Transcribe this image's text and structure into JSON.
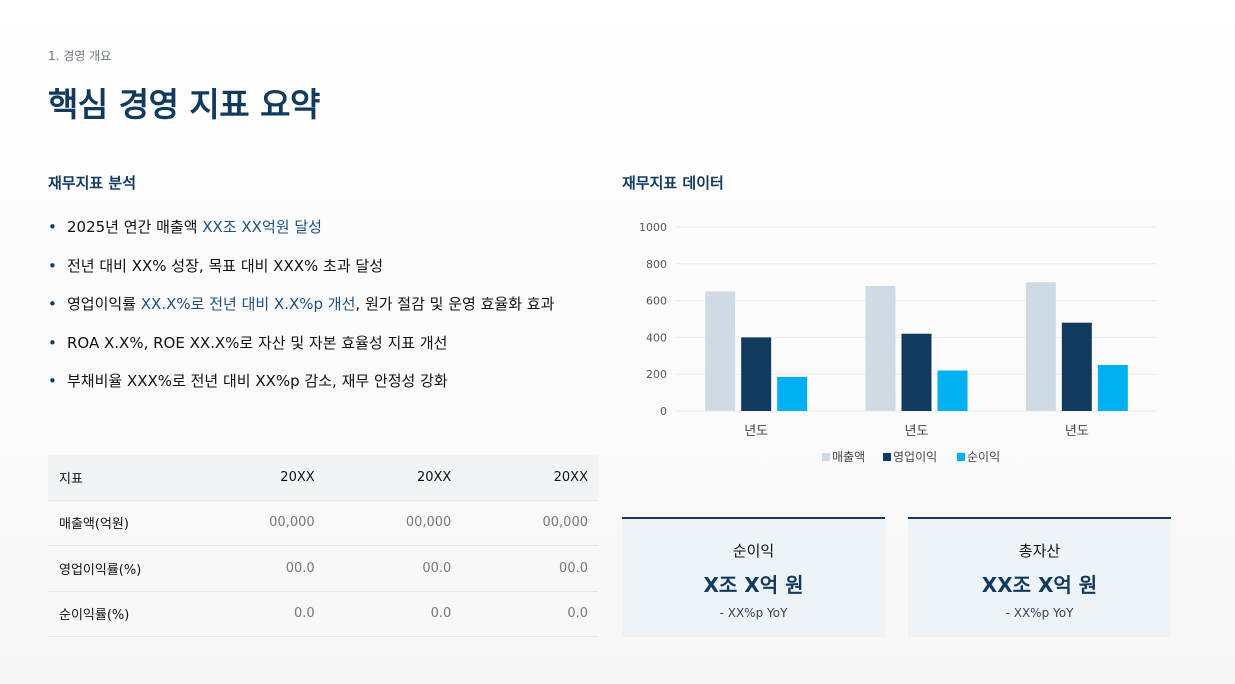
{
  "header": {
    "section": "1. 경영 개요",
    "title": "핵심 경영 지표 요약"
  },
  "left": {
    "title": "재무지표 분석",
    "bullets": [
      {
        "parts": [
          {
            "t": "2025년 연간 매출액 ",
            "h": false
          },
          {
            "t": "XX조 XX억원 달성",
            "h": true
          }
        ]
      },
      {
        "parts": [
          {
            "t": "전년 대비 XX% 성장, 목표 대비 XXX% 초과 달성",
            "h": false
          }
        ]
      },
      {
        "parts": [
          {
            "t": "영업이익률 ",
            "h": false
          },
          {
            "t": "XX.X%로 전년 대비 X.X%p 개선",
            "h": true
          },
          {
            "t": ", 원가 절감 및 운영 효율화 효과",
            "h": false
          }
        ]
      },
      {
        "parts": [
          {
            "t": "ROA X.X%, ROE XX.X%로 자산 및 자본 효율성 지표 개선",
            "h": false
          }
        ]
      },
      {
        "parts": [
          {
            "t": "부채비율 XXX%로 전년 대비 XX%p 감소, 재무 안정성 강화",
            "h": false
          }
        ]
      }
    ]
  },
  "table": {
    "headers": [
      "지표",
      "20XX",
      "20XX",
      "20XX"
    ],
    "rows": [
      [
        "매출액(억원)",
        "00,000",
        "00,000",
        "00,000"
      ],
      [
        "영업이익률(%)",
        "00.0",
        "00.0",
        "00.0"
      ],
      [
        "순이익률(%)",
        "0.0",
        "0.0",
        "0.0"
      ]
    ]
  },
  "right": {
    "title": "재무지표 데이터"
  },
  "chart_data": {
    "type": "bar",
    "categories": [
      "년도",
      "년도",
      "년도"
    ],
    "series": [
      {
        "name": "매출액",
        "color": "#cfdbe4",
        "values": [
          650,
          680,
          700
        ]
      },
      {
        "name": "영업이익",
        "color": "#123a5e",
        "values": [
          400,
          420,
          480
        ]
      },
      {
        "name": "순이익",
        "color": "#00b0f0",
        "values": [
          185,
          220,
          250
        ]
      }
    ],
    "ylim": [
      0,
      1000
    ],
    "yticks": [
      0,
      200,
      400,
      600,
      800,
      1000
    ],
    "grid": true,
    "legend": "bottom"
  },
  "cards": [
    {
      "label": "순이익",
      "value": "X조 X억 원",
      "sub": "- XX%p YoY"
    },
    {
      "label": "총자산",
      "value": "XX조 X억 원",
      "sub": "- XX%p YoY"
    }
  ]
}
